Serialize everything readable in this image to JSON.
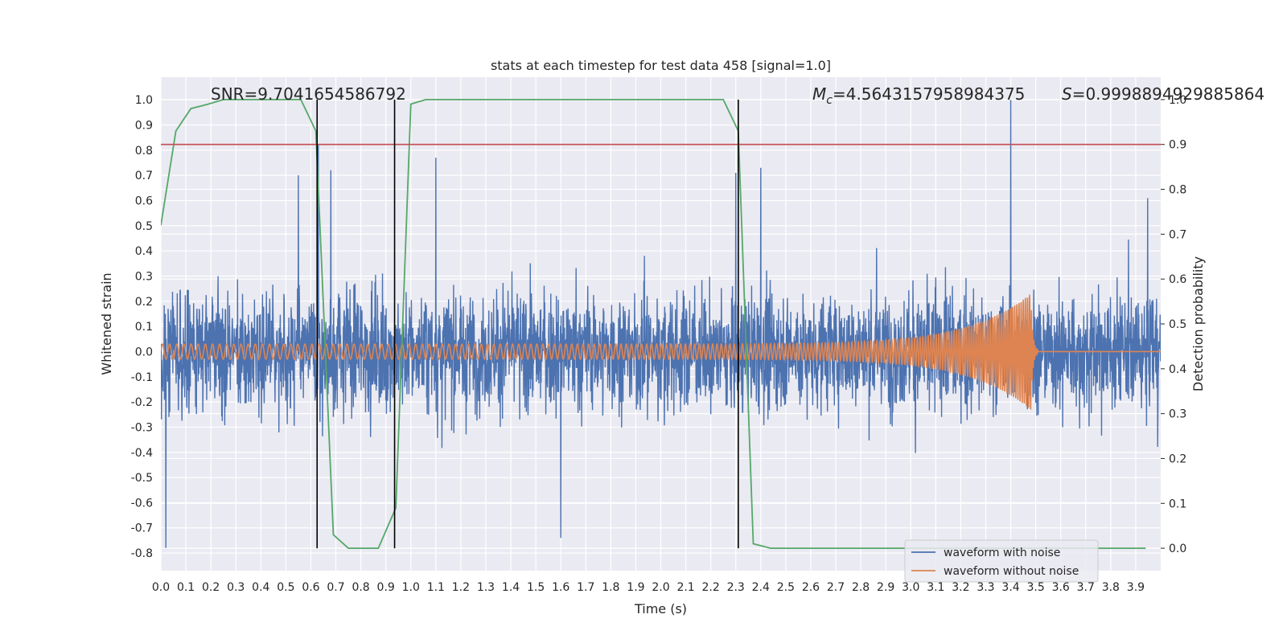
{
  "chart_data": {
    "type": "line",
    "title": "stats at each timestep for test data 458 [signal=1.0]",
    "xlabel": "Time (s)",
    "ylabel": "Whitened strain",
    "ylabel_right": "Detection probability",
    "xlim": [
      0.0,
      4.0
    ],
    "ylim": [
      -0.87,
      1.09
    ],
    "ylim_right": [
      -0.05,
      1.05
    ],
    "x_ticks": [
      0.0,
      0.1,
      0.2,
      0.3,
      0.4,
      0.5,
      0.6,
      0.7,
      0.8,
      0.9,
      1.0,
      1.1,
      1.2,
      1.3,
      1.4,
      1.5,
      1.6,
      1.7,
      1.8,
      1.9,
      2.0,
      2.1,
      2.2,
      2.3,
      2.4,
      2.5,
      2.6,
      2.7,
      2.8,
      2.9,
      3.0,
      3.1,
      3.2,
      3.3,
      3.4,
      3.5,
      3.6,
      3.7,
      3.8,
      3.9
    ],
    "y_ticks": [
      -0.8,
      -0.7,
      -0.6,
      -0.5,
      -0.4,
      -0.3,
      -0.2,
      -0.1,
      0.0,
      0.1,
      0.2,
      0.3,
      0.4,
      0.5,
      0.6,
      0.7,
      0.8,
      0.9,
      1.0
    ],
    "y_ticks_right": [
      0.0,
      0.1,
      0.2,
      0.3,
      0.4,
      0.5,
      0.6,
      0.7,
      0.8,
      0.9,
      1.0
    ],
    "grid": true,
    "legend_position": "bottom-right",
    "annotations": {
      "snr": "SNR=9.7041654586792",
      "mc_symbol": "M",
      "mc_sub": "c",
      "mc_value": "=4.5643157958984375",
      "s_symbol": "S",
      "s_value": "=0.9998894929885864"
    },
    "threshold_right": 0.9,
    "vertical_lines_x": [
      0.625,
      0.935,
      2.31
    ],
    "series": [
      {
        "name": "waveform with noise",
        "color": "#4c72b0",
        "kind": "noise",
        "amplitude_envelope": 0.45,
        "peaks": [
          {
            "x": 0.02,
            "y": -0.78
          },
          {
            "x": 0.55,
            "y": 0.7
          },
          {
            "x": 0.63,
            "y": 0.82
          },
          {
            "x": 0.68,
            "y": 0.72
          },
          {
            "x": 1.1,
            "y": 0.77
          },
          {
            "x": 1.6,
            "y": -0.74
          },
          {
            "x": 2.3,
            "y": 0.71
          },
          {
            "x": 2.4,
            "y": 0.73
          },
          {
            "x": 3.4,
            "y": 1.0
          }
        ]
      },
      {
        "name": "waveform without noise",
        "color": "#dd8452",
        "kind": "chirp",
        "base_amplitude": 0.03,
        "peak_amplitude": 0.23,
        "merger_time": 3.48,
        "start_frequency_hz": 35,
        "end_frequency_hz": 120
      },
      {
        "name": "detection probability",
        "color": "#55a868",
        "axis": "right",
        "x": [
          0.0,
          0.06,
          0.12,
          0.19,
          0.25,
          0.31,
          0.37,
          0.44,
          0.5,
          0.56,
          0.62,
          0.69,
          0.75,
          0.81,
          0.87,
          0.94,
          1.0,
          1.06,
          1.12,
          1.19,
          1.25,
          1.31,
          1.37,
          1.44,
          1.5,
          1.56,
          1.62,
          1.69,
          1.75,
          1.81,
          1.87,
          1.94,
          2.0,
          2.06,
          2.12,
          2.19,
          2.25,
          2.31,
          2.37,
          2.44,
          2.5,
          2.56,
          2.62,
          2.69,
          2.75,
          2.81,
          2.87,
          2.94,
          3.0,
          3.06,
          3.12,
          3.19,
          3.25,
          3.31,
          3.37,
          3.44,
          3.5,
          3.56,
          3.62,
          3.69,
          3.75,
          3.81,
          3.87,
          3.94
        ],
        "y": [
          0.72,
          0.93,
          0.98,
          0.99,
          1.0,
          1.0,
          1.0,
          1.0,
          1.0,
          1.0,
          0.93,
          0.03,
          0.0,
          0.0,
          0.0,
          0.09,
          0.99,
          1.0,
          1.0,
          1.0,
          1.0,
          1.0,
          1.0,
          1.0,
          1.0,
          1.0,
          1.0,
          1.0,
          1.0,
          1.0,
          1.0,
          1.0,
          1.0,
          1.0,
          1.0,
          1.0,
          1.0,
          0.93,
          0.01,
          0.0,
          0.0,
          0.0,
          0.0,
          0.0,
          0.0,
          0.0,
          0.0,
          0.0,
          0.0,
          0.0,
          0.0,
          0.0,
          0.0,
          0.0,
          0.0,
          0.0,
          0.0,
          0.0,
          0.0,
          0.0,
          0.0,
          0.0,
          0.0,
          0.0
        ]
      }
    ]
  }
}
